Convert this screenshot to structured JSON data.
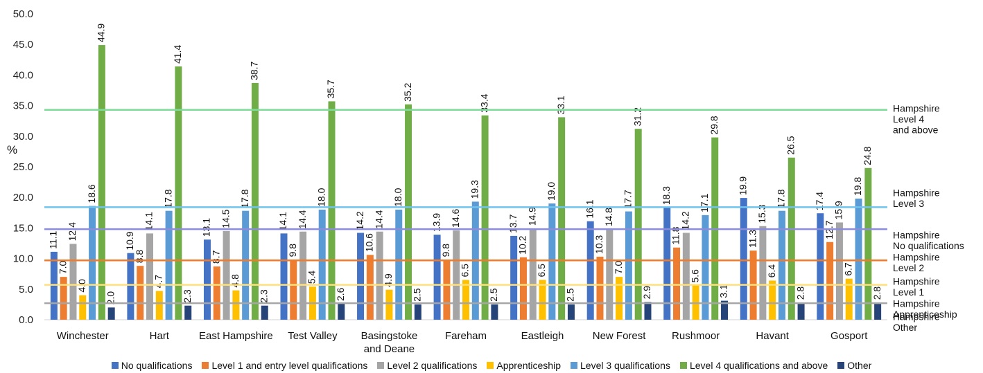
{
  "chart_data": {
    "type": "bar",
    "ylabel": "%",
    "ylim": [
      0,
      50
    ],
    "yticks": [
      "0.0",
      "5.0",
      "10.0",
      "15.0",
      "20.0",
      "25.0",
      "30.0",
      "35.0",
      "40.0",
      "45.0",
      "50.0"
    ],
    "grid": false,
    "legend_position": "bottom",
    "categories": [
      [
        "Winchester"
      ],
      [
        "Hart"
      ],
      [
        "East Hampshire"
      ],
      [
        "Test Valley"
      ],
      [
        "Basingstoke",
        "and Deane"
      ],
      [
        "Fareham"
      ],
      [
        "Eastleigh"
      ],
      [
        "New Forest"
      ],
      [
        "Rushmoor"
      ],
      [
        "Havant"
      ],
      [
        "Gosport"
      ]
    ],
    "series": [
      {
        "name": "No qualifications",
        "color": "#4472C4",
        "values": [
          11.1,
          10.9,
          13.1,
          14.1,
          14.2,
          13.9,
          13.7,
          16.1,
          18.3,
          19.9,
          17.4
        ],
        "labels": [
          "11.1",
          "10.9",
          "13.1",
          "14.1",
          "14.2",
          "13.9",
          "13.7",
          "16.1",
          "18.3",
          "19.9",
          "17.4"
        ]
      },
      {
        "name": "Level 1 and entry level qualifications",
        "color": "#ED7D31",
        "values": [
          7.0,
          8.8,
          8.7,
          9.8,
          10.6,
          9.8,
          10.2,
          10.3,
          11.8,
          11.3,
          12.7
        ],
        "labels": [
          "7.0",
          "8.8",
          "8.7",
          "9.8",
          "10.6",
          "9.8",
          "10.2",
          "10.3",
          "11.8",
          "11.3",
          "12.7"
        ]
      },
      {
        "name": "Level 2 qualifications",
        "color": "#A5A5A5",
        "values": [
          12.4,
          14.1,
          14.5,
          14.4,
          14.4,
          14.6,
          14.9,
          14.8,
          14.2,
          15.3,
          15.9
        ],
        "labels": [
          "12.4",
          "14.1",
          "14.5",
          "14.4",
          "14.4",
          "14.6",
          "14.9",
          "14.8",
          "14.2",
          "15.3",
          "15.9"
        ]
      },
      {
        "name": "Apprenticeship",
        "color": "#FFC000",
        "values": [
          4.0,
          4.7,
          4.8,
          5.4,
          4.9,
          6.5,
          6.5,
          7.0,
          5.6,
          6.4,
          6.7
        ],
        "labels": [
          "4.0",
          "4.7",
          "4.8",
          "5.4",
          "4.9",
          "6.5",
          "6.5",
          "7.0",
          "5.6",
          "6.4",
          "6.7"
        ]
      },
      {
        "name": "Level 3 qualifications",
        "color": "#5B9BD5",
        "values": [
          18.6,
          17.8,
          17.8,
          18.0,
          18.0,
          19.3,
          19.0,
          17.7,
          17.1,
          17.8,
          19.8
        ],
        "labels": [
          "18.6",
          "17.8",
          "17.8",
          "18.0",
          "18.0",
          "19.3",
          "19.0",
          "17.7",
          "17.1",
          "17.8",
          "19.8"
        ]
      },
      {
        "name": "Level 4 qualifications and above",
        "color": "#70AD47",
        "values": [
          44.9,
          41.4,
          38.7,
          35.7,
          35.2,
          33.4,
          33.1,
          31.2,
          29.8,
          26.5,
          24.8
        ],
        "labels": [
          "44.9",
          "41.4",
          "38.7",
          "35.7",
          "35.2",
          "33.4",
          "33.1",
          "31.2",
          "29.8",
          "26.5",
          "24.8"
        ]
      },
      {
        "name": "Other",
        "color": "#264478",
        "values": [
          2.0,
          2.3,
          2.3,
          2.6,
          2.5,
          2.5,
          2.5,
          2.9,
          3.1,
          2.8,
          2.8
        ],
        "labels": [
          "2.0",
          "2.3",
          "2.3",
          "2.6",
          "2.5",
          "2.5",
          "2.5",
          "2.9",
          "3.1",
          "2.8",
          "2.8"
        ]
      }
    ],
    "reference_lines": [
      {
        "value": 34.3,
        "color": "#7FDB9A",
        "label": [
          "Hampshire",
          "Level 4",
          "and above"
        ]
      },
      {
        "value": 18.4,
        "color": "#6FC3EE",
        "label": [
          "Hampshire",
          "Level 3"
        ]
      },
      {
        "value": 14.8,
        "color": "#8C8CDB",
        "label": [
          "Hampshire",
          "No qualifications"
        ]
      },
      {
        "value": 9.7,
        "color": "#F07B2A",
        "label": [
          "Hampshire",
          "Level 2"
        ]
      },
      {
        "value": 5.7,
        "color": "#FFE07A",
        "label": [
          "Hampshire",
          "Level 1"
        ]
      },
      {
        "value": 2.7,
        "color": "#A6A6A6",
        "label": [
          "Hampshire",
          "Apprenticeship"
        ]
      }
    ],
    "extra_labels": [
      [
        "Hampshire",
        "Other"
      ]
    ]
  }
}
